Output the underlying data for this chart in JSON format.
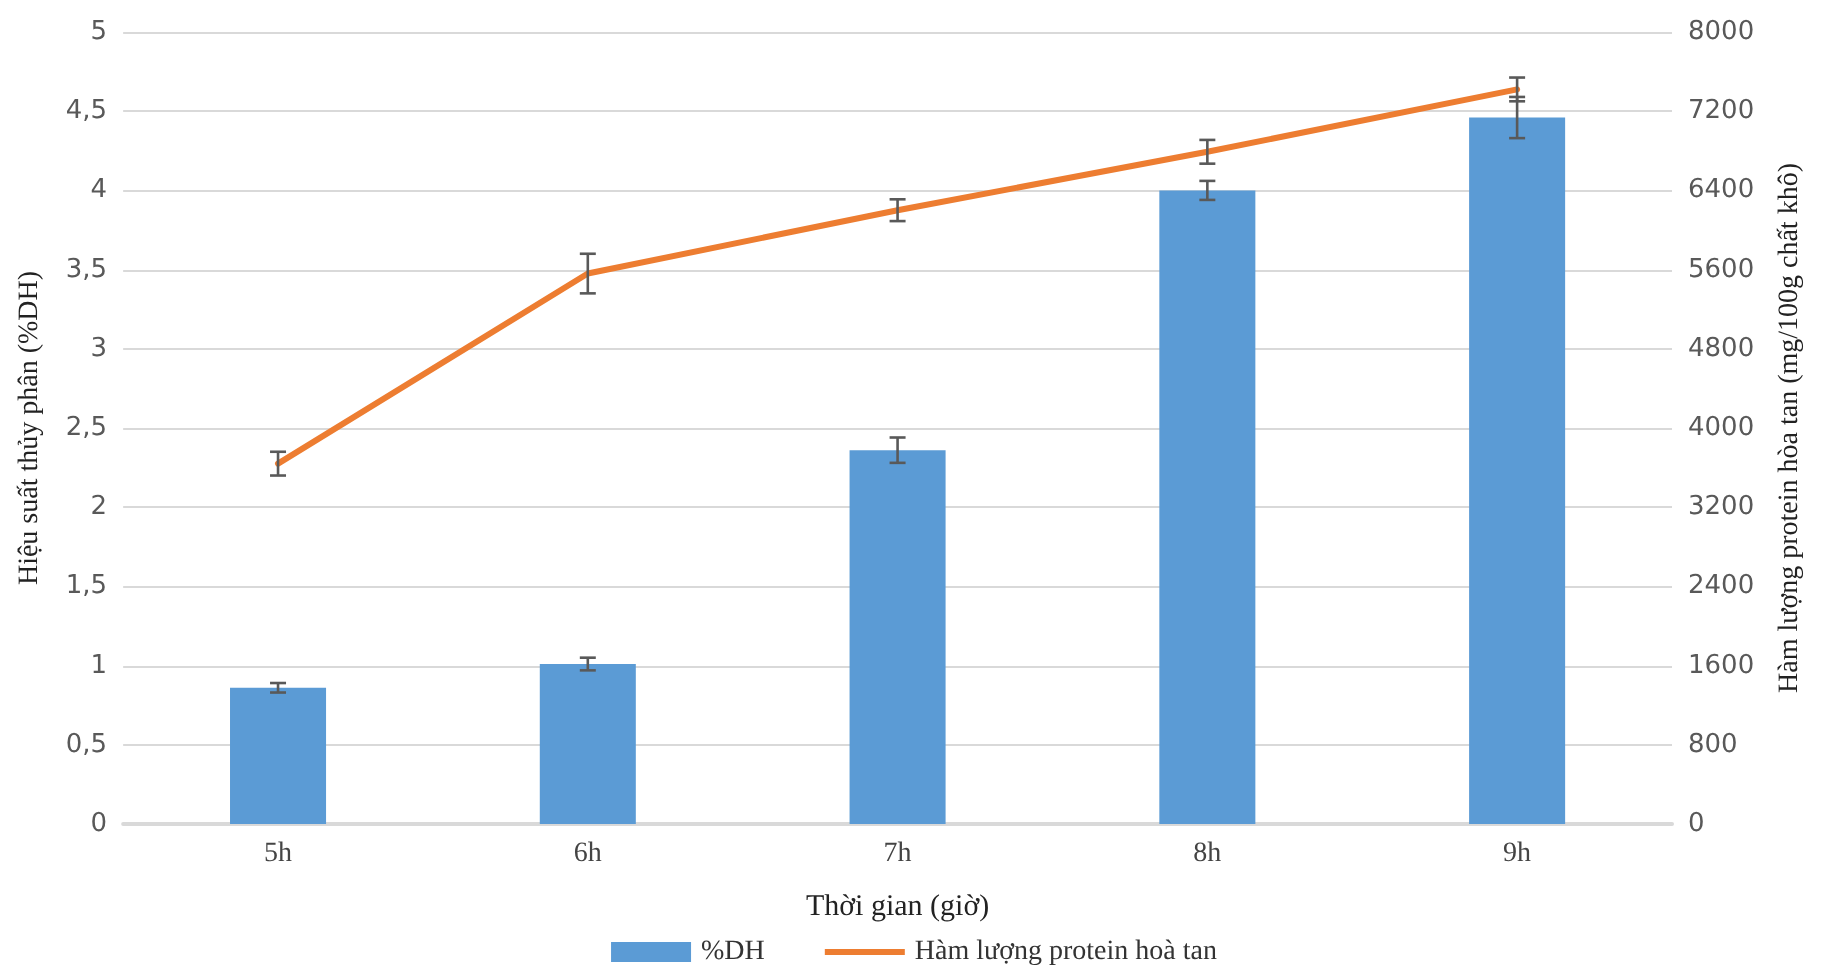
{
  "chart_data": {
    "type": "bar",
    "xlabel": "Thời gian (giờ)",
    "ylabel": "Hiệu suất thủy phân (%DH)",
    "y2label": "Hàm lượng protein hòa tan (mg/100g chất khô)",
    "categories": [
      "5h",
      "6h",
      "7h",
      "8h",
      "9h"
    ],
    "series": [
      {
        "name": "%DH",
        "color": "#5b9bd5",
        "values": [
          0.86,
          1.01,
          2.36,
          4.0,
          4.46
        ],
        "errors": [
          0.03,
          0.04,
          0.08,
          0.06,
          0.13
        ]
      },
      {
        "name": "Hàm lượng protein hoà tan",
        "type": "line",
        "axis": "y2",
        "color": "#ed7d31",
        "values": [
          3640,
          5560,
          6200,
          6790,
          7420
        ],
        "errors": [
          120,
          200,
          110,
          120,
          120
        ]
      }
    ],
    "ylim": [
      0,
      5
    ],
    "yticks": [
      0,
      {
        "value": 0.5,
        "label": "0,5"
      },
      1,
      {
        "value": 1.5,
        "label": "1,5"
      },
      2,
      {
        "value": 2.5,
        "label": "2,5"
      },
      3,
      {
        "value": 3.5,
        "label": "3,5"
      },
      4,
      {
        "value": 4.5,
        "label": "4,5"
      },
      5
    ],
    "y2lim": [
      0,
      8000
    ],
    "y2ticks": [
      0,
      800,
      1600,
      2400,
      3200,
      4000,
      4800,
      5600,
      6400,
      7200,
      8000
    ],
    "grid": "y",
    "legend": "bottom",
    "marker": "none",
    "line_style": "solid"
  }
}
